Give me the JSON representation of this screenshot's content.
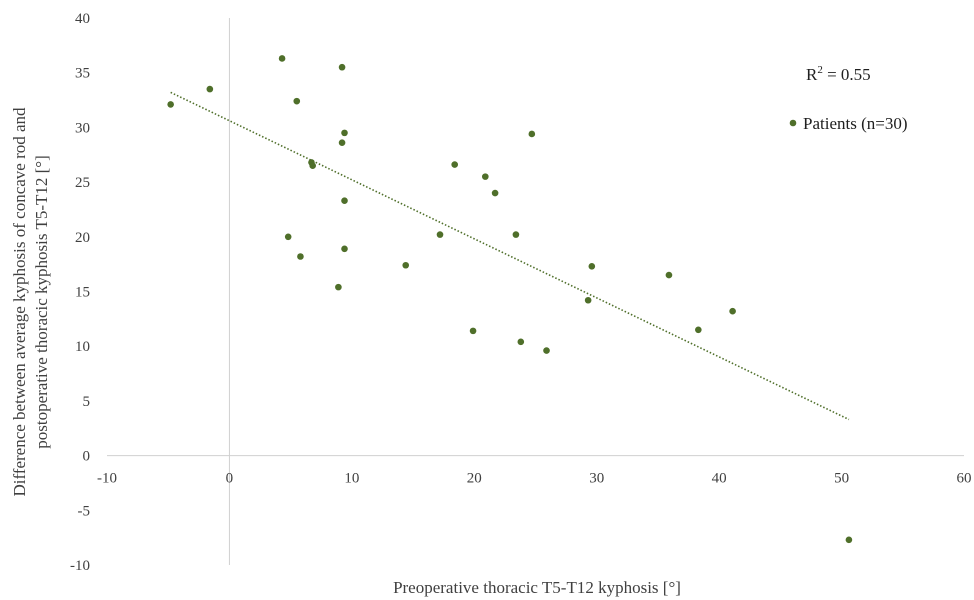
{
  "chart_data": {
    "type": "scatter",
    "xlabel": "Preoperative thoracic T5-T12 kyphosis  [°]",
    "ylabel_lines": [
      "Difference between average kyphosis of concave rod and",
      "postoperative thoracic kyphosis T5-T12 [°]"
    ],
    "xlim": [
      -10,
      60
    ],
    "ylim": [
      -10,
      40
    ],
    "x_ticks": [
      -10,
      0,
      10,
      20,
      30,
      40,
      50,
      60
    ],
    "y_ticks": [
      -10,
      -5,
      0,
      5,
      10,
      15,
      20,
      25,
      30,
      35,
      40
    ],
    "grid": false,
    "legend_position": "top-right",
    "annotation": {
      "prefix": "R",
      "superscript": "2",
      "suffix": " = 0.55"
    },
    "series": [
      {
        "name": "Patients (n=30)",
        "color": "#4f6f2a",
        "points": [
          {
            "x": -4.8,
            "y": 32.1
          },
          {
            "x": -1.6,
            "y": 33.5
          },
          {
            "x": 4.3,
            "y": 36.3
          },
          {
            "x": 5.5,
            "y": 32.4
          },
          {
            "x": 9.2,
            "y": 35.5
          },
          {
            "x": 9.4,
            "y": 29.5
          },
          {
            "x": 9.2,
            "y": 28.6
          },
          {
            "x": 6.7,
            "y": 26.8
          },
          {
            "x": 6.8,
            "y": 26.5
          },
          {
            "x": 9.4,
            "y": 23.3
          },
          {
            "x": 4.8,
            "y": 20.0
          },
          {
            "x": 5.8,
            "y": 18.2
          },
          {
            "x": 9.4,
            "y": 18.9
          },
          {
            "x": 8.9,
            "y": 15.4
          },
          {
            "x": 14.4,
            "y": 17.4
          },
          {
            "x": 17.2,
            "y": 20.2
          },
          {
            "x": 18.4,
            "y": 26.6
          },
          {
            "x": 20.9,
            "y": 25.5
          },
          {
            "x": 21.7,
            "y": 24.0
          },
          {
            "x": 23.4,
            "y": 20.2
          },
          {
            "x": 24.7,
            "y": 29.4
          },
          {
            "x": 19.9,
            "y": 11.4
          },
          {
            "x": 23.8,
            "y": 10.4
          },
          {
            "x": 25.9,
            "y": 9.6
          },
          {
            "x": 29.3,
            "y": 14.2
          },
          {
            "x": 29.6,
            "y": 17.3
          },
          {
            "x": 35.9,
            "y": 16.5
          },
          {
            "x": 38.3,
            "y": 11.5
          },
          {
            "x": 41.1,
            "y": 13.2
          },
          {
            "x": 50.6,
            "y": -7.7
          }
        ]
      }
    ],
    "trendline": {
      "type": "linear",
      "color": "#4f6f2a",
      "style": "dotted",
      "x0": -4.8,
      "y0": 33.2,
      "x1": 50.6,
      "y1": 3.3
    }
  }
}
